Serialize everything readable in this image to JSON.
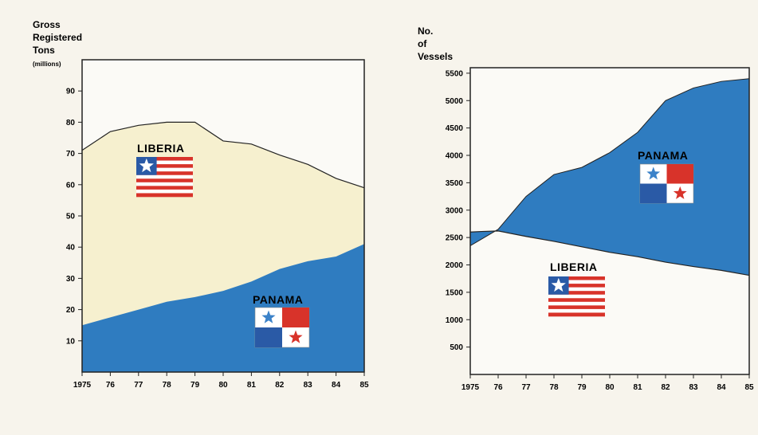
{
  "colors": {
    "background": "#f7f4ec",
    "liberia_fill": "#f6f0cf",
    "panama_fill": "#2f7cc0",
    "white_area": "#fbfaf6",
    "axis": "#222222",
    "flag_red": "#d8332a",
    "flag_blue_canton": "#2a5aa6",
    "flag_star_blue": "#3b82c9"
  },
  "chart_data": [
    {
      "type": "area",
      "ylabel_lines": [
        "Gross",
        "Registered",
        "Tons"
      ],
      "ylabel_units": "(millions)",
      "x": [
        "1975",
        "76",
        "77",
        "78",
        "79",
        "80",
        "81",
        "82",
        "83",
        "84",
        "85"
      ],
      "xlim": [
        1975,
        1985
      ],
      "ylim": [
        0,
        100
      ],
      "yticks": [
        10,
        20,
        30,
        40,
        50,
        60,
        70,
        80,
        90
      ],
      "series": [
        {
          "name": "PANAMA",
          "x": [
            1975,
            1976,
            1977,
            1978,
            1979,
            1980,
            1981,
            1982,
            1983,
            1984,
            1985
          ],
          "values": [
            15,
            17.5,
            20,
            22.5,
            24,
            26,
            29,
            33,
            35.5,
            37,
            41
          ]
        },
        {
          "name": "LIBERIA",
          "x": [
            1975,
            1976,
            1977,
            1978,
            1979,
            1980,
            1981,
            1982,
            1983,
            1984,
            1985
          ],
          "values": [
            71,
            77,
            79,
            80,
            80,
            74,
            73,
            69.5,
            66.5,
            62,
            59
          ]
        }
      ],
      "labels": {
        "liberia": "LIBERIA",
        "panama": "PANAMA"
      }
    },
    {
      "type": "area",
      "ylabel_lines": [
        "No.",
        "of",
        "Vessels"
      ],
      "x": [
        "1975",
        "76",
        "77",
        "78",
        "79",
        "80",
        "81",
        "82",
        "83",
        "84",
        "85"
      ],
      "xlim": [
        1975,
        1985
      ],
      "ylim": [
        0,
        5600
      ],
      "yticks": [
        500,
        1000,
        1500,
        2000,
        2500,
        3000,
        3500,
        4000,
        4500,
        5000,
        5500
      ],
      "series": [
        {
          "name": "PANAMA",
          "x": [
            1975,
            1976,
            1977,
            1978,
            1979,
            1980,
            1981,
            1982,
            1983,
            1984,
            1985
          ],
          "values": [
            2350,
            2650,
            3250,
            3650,
            3780,
            4050,
            4420,
            5000,
            5230,
            5350,
            5400
          ]
        },
        {
          "name": "LIBERIA",
          "x": [
            1975,
            1975.4,
            1976,
            1977,
            1978,
            1979,
            1980,
            1981,
            1982,
            1983,
            1984,
            1985
          ],
          "values": [
            2600,
            2610,
            2620,
            2520,
            2430,
            2330,
            2230,
            2150,
            2050,
            1970,
            1900,
            1810
          ]
        }
      ],
      "labels": {
        "liberia": "LIBERIA",
        "panama": "PANAMA"
      }
    }
  ]
}
